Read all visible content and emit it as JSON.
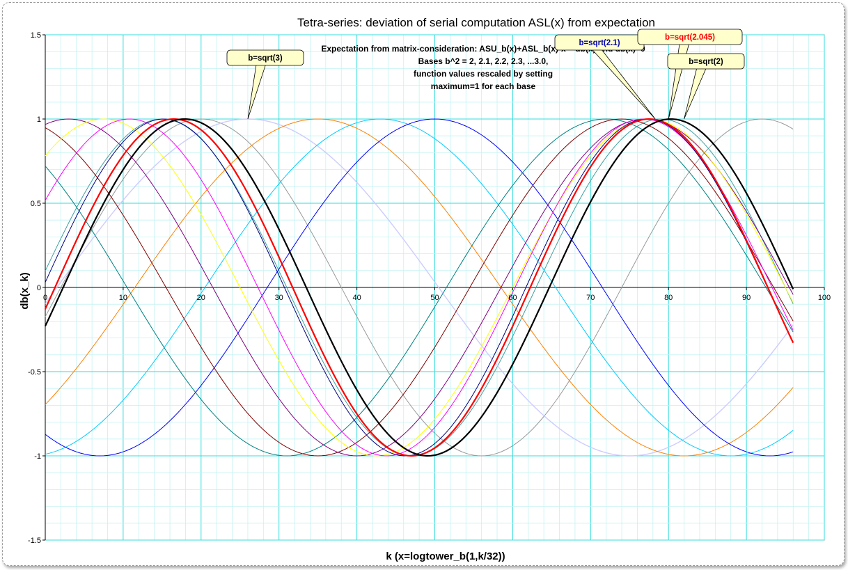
{
  "chart_data": {
    "type": "line",
    "title": "Tetra-series: deviation of serial computation ASL(x) from expectation",
    "xlabel": "k (x=logtower_b(1,k/32))",
    "ylabel": "db(x_k)",
    "xlim": [
      0,
      100
    ],
    "ylim": [
      -1.5,
      1.5
    ],
    "x_ticks": [
      "0",
      "10",
      "20",
      "30",
      "40",
      "50",
      "60",
      "70",
      "80",
      "90",
      "100"
    ],
    "y_ticks": [
      "1.5",
      "1",
      "0.5",
      "0",
      "-0.5",
      "-1",
      "-1.5"
    ],
    "grid": true,
    "legend": "none",
    "x_range_data": [
      0,
      96
    ],
    "annotation_lines": [
      "Expectation from matrix-consideration: ASU_b(x)+ASL_b(x)-x = db(x)  and db(x)=0",
      "Bases b^2 = 2, 2.1, 2.2, 2.3, ...3.0,",
      "function values rescaled by setting",
      "maximum=1 for each base"
    ],
    "callouts": [
      {
        "label": "b=sqrt(3)",
        "x": 26,
        "y": 1.0,
        "color": "#000000"
      },
      {
        "label": "b=sqrt(2.1)",
        "x": 78.3,
        "y": 1.0,
        "color": "#0000b0"
      },
      {
        "label": "b=sqrt(2.045)",
        "x": 80,
        "y": 1.0,
        "color": "#ff0000"
      },
      {
        "label": "b=sqrt(2)",
        "x": 82,
        "y": 1.0,
        "color": "#000000"
      }
    ],
    "series": [
      {
        "period": 62.4,
        "peak": 17.9,
        "color": "#000000",
        "width": 2.2
      },
      {
        "period": 61.0,
        "peak": 16.5,
        "color": "#ff0000",
        "width": 2.2
      },
      {
        "period": 62.0,
        "peak": 15.2,
        "color": "#00007f",
        "width": 1
      },
      {
        "period": 66.0,
        "peak": 10.8,
        "color": "#ff00ff",
        "width": 1
      },
      {
        "period": 70.0,
        "peak": 7.5,
        "color": "#ffff00",
        "width": 1
      },
      {
        "period": 74.0,
        "peak": 3.0,
        "color": "#800080",
        "width": 1
      },
      {
        "period": 78.0,
        "peak": -4.0,
        "color": "#800000",
        "width": 1
      },
      {
        "period": 82.0,
        "peak": -10.0,
        "color": "#008080",
        "width": 1
      },
      {
        "period": 86.0,
        "peak": 50.0,
        "color": "#0000ff",
        "width": 1
      },
      {
        "period": 90.0,
        "peak": 43.0,
        "color": "#00ccff",
        "width": 1
      },
      {
        "period": 94.0,
        "peak": 35.0,
        "color": "#ff8000",
        "width": 1
      },
      {
        "period": 98.0,
        "peak": 26.0,
        "color": "#ccccff",
        "width": 1.4
      },
      {
        "period": 64.0,
        "peak": 15.0,
        "color": "#40a0a0",
        "width": 1
      },
      {
        "period": 72.0,
        "peak": 20.0,
        "color": "#999999",
        "width": 1
      }
    ]
  }
}
